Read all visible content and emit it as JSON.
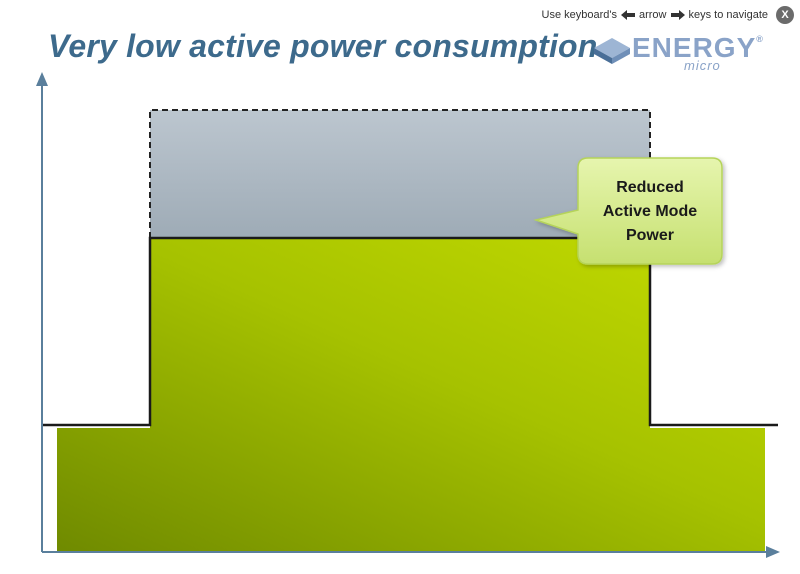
{
  "header": {
    "nav_prefix": "Use keyboard's",
    "nav_middle": "arrow",
    "nav_suffix": "keys to navigate",
    "close_label": "X",
    "title": "Very low active power consumption"
  },
  "logo": {
    "word": "ENERGY",
    "reg": "®",
    "sub": "micro"
  },
  "callout": {
    "lines": [
      "Reduced",
      "Active Mode",
      "Power"
    ]
  },
  "colors": {
    "title": "#3d6a8c",
    "green_fill": "#a8c400",
    "green_dark": "#6f8a00",
    "gray_fill": "#a7b3bd",
    "callout_fill": "#d4ec8c",
    "axis": "#5a7f9c"
  },
  "icons": {
    "left_arrow": "arrow-left-icon",
    "right_arrow": "arrow-right-icon",
    "close": "close-icon",
    "logo_mark": "energy-micro-logo-icon"
  }
}
